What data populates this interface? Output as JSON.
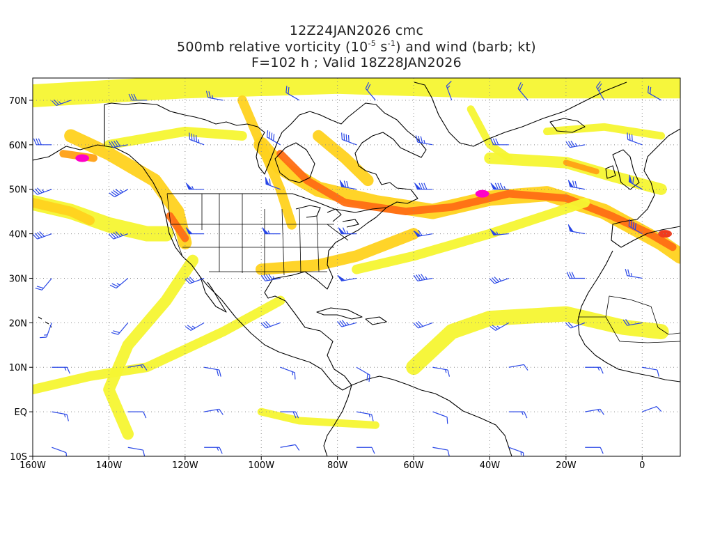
{
  "title": {
    "line1": "12Z24JAN2026 cmc",
    "line2_pre": "500mb relative vorticity (10",
    "line2_exp1": "-5",
    "line2_mid": " s",
    "line2_exp2": "-1",
    "line2_post": ") and wind (barb; kt)",
    "line3": "F=102 h ; Valid 18Z28JAN2026"
  },
  "axes": {
    "lon_labels": [
      "160W",
      "140W",
      "120W",
      "100W",
      "80W",
      "60W",
      "40W",
      "20W",
      "0"
    ],
    "lat_labels": [
      "70N",
      "60N",
      "50N",
      "40N",
      "30N",
      "20N",
      "10N",
      "EQ",
      "10S"
    ],
    "lon_range": [
      -160,
      10
    ],
    "lat_range": [
      -10,
      75
    ],
    "grid": "dotted"
  },
  "colors": {
    "level1": "#f5f532",
    "level2": "#ffd21e",
    "level3": "#ffa014",
    "level4": "#ff6e14",
    "level5": "#f03c1e",
    "level6": "#ff00c8",
    "barb": "#2846e6",
    "coast": "#000000"
  },
  "map_data": {
    "type": "vorticity_wind_map",
    "vorticity_bands": [
      {
        "level": 1,
        "path": [
          [
            -160,
            71
          ],
          [
            -120,
            73
          ],
          [
            -80,
            74
          ],
          [
            -40,
            73
          ],
          [
            -20,
            73
          ],
          [
            10,
            73
          ]
        ],
        "width": 6
      },
      {
        "level": 2,
        "path": [
          [
            -150,
            62
          ],
          [
            -140,
            58
          ],
          [
            -128,
            52
          ],
          [
            -122,
            45
          ],
          [
            -120,
            38
          ]
        ],
        "width": 3.5
      },
      {
        "level": 4,
        "path": [
          [
            -124,
            44
          ],
          [
            -120,
            39
          ]
        ],
        "width": 2
      },
      {
        "level": 1,
        "path": [
          [
            -140,
            60
          ],
          [
            -120,
            63
          ],
          [
            -105,
            62
          ]
        ],
        "width": 2.5
      },
      {
        "level": 1,
        "path": [
          [
            -135,
            -5
          ],
          [
            -140,
            5
          ],
          [
            -135,
            15
          ],
          [
            -125,
            25
          ],
          [
            -118,
            34
          ]
        ],
        "width": 3
      },
      {
        "level": 1,
        "path": [
          [
            -160,
            5
          ],
          [
            -145,
            8
          ],
          [
            -130,
            10
          ],
          [
            -110,
            18
          ],
          [
            -95,
            25
          ]
        ],
        "width": 2.5
      },
      {
        "level": 2,
        "path": [
          [
            -100,
            60
          ],
          [
            -95,
            55
          ],
          [
            -85,
            50
          ],
          [
            -70,
            47
          ],
          [
            -55,
            45
          ],
          [
            -40,
            48
          ],
          [
            -25,
            49
          ],
          [
            -10,
            45
          ],
          [
            5,
            38
          ],
          [
            10,
            35
          ]
        ],
        "width": 4
      },
      {
        "level": 4,
        "path": [
          [
            -95,
            58
          ],
          [
            -88,
            52
          ],
          [
            -78,
            47
          ],
          [
            -62,
            45
          ],
          [
            -50,
            46
          ],
          [
            -35,
            49
          ],
          [
            -20,
            48
          ],
          [
            -8,
            44
          ],
          [
            2,
            40
          ],
          [
            8,
            37
          ]
        ],
        "width": 2
      },
      {
        "level": 2,
        "path": [
          [
            -105,
            70
          ],
          [
            -100,
            60
          ],
          [
            -95,
            50
          ],
          [
            -92,
            42
          ]
        ],
        "width": 2.5
      },
      {
        "level": 2,
        "path": [
          [
            -85,
            62
          ],
          [
            -78,
            57
          ],
          [
            -72,
            52
          ]
        ],
        "width": 3
      },
      {
        "level": 2,
        "path": [
          [
            -100,
            32
          ],
          [
            -85,
            33
          ],
          [
            -75,
            35
          ],
          [
            -60,
            40
          ]
        ],
        "width": 3
      },
      {
        "level": 1,
        "path": [
          [
            -75,
            32
          ],
          [
            -60,
            35
          ],
          [
            -40,
            40
          ],
          [
            -15,
            47
          ]
        ],
        "width": 2.5
      },
      {
        "level": 1,
        "path": [
          [
            -60,
            10
          ],
          [
            -50,
            18
          ],
          [
            -40,
            21
          ],
          [
            -20,
            22
          ],
          [
            -5,
            19
          ],
          [
            5,
            18
          ]
        ],
        "width": 4
      },
      {
        "level": 1,
        "path": [
          [
            -160,
            47
          ],
          [
            -150,
            45
          ],
          [
            -140,
            42
          ],
          [
            -130,
            40
          ],
          [
            -125,
            40
          ]
        ],
        "width": 4
      },
      {
        "level": 2,
        "path": [
          [
            -160,
            47
          ],
          [
            -150,
            45
          ],
          [
            -145,
            43
          ]
        ],
        "width": 2.5
      },
      {
        "level": 1,
        "path": [
          [
            -70,
            -3
          ],
          [
            -90,
            -2
          ],
          [
            -100,
            0
          ]
        ],
        "width": 2
      },
      {
        "level": 1,
        "path": [
          [
            -40,
            57
          ],
          [
            -20,
            56
          ],
          [
            -8,
            53
          ],
          [
            5,
            50
          ]
        ],
        "width": 3
      },
      {
        "level": 3,
        "path": [
          [
            -20,
            56
          ],
          [
            -12,
            54
          ]
        ],
        "width": 1.5
      },
      {
        "level": 3,
        "path": [
          [
            -152,
            58
          ],
          [
            -144,
            57
          ]
        ],
        "width": 2
      },
      {
        "level": 1,
        "path": [
          [
            -25,
            63
          ],
          [
            -10,
            64
          ],
          [
            5,
            62
          ]
        ],
        "width": 2
      },
      {
        "level": 1,
        "path": [
          [
            -45,
            68
          ],
          [
            -40,
            60
          ],
          [
            -35,
            57
          ]
        ],
        "width": 2
      }
    ],
    "vorticity_max": [
      {
        "lat": 57,
        "lon": -147,
        "level": 6
      },
      {
        "lat": 49,
        "lon": -42,
        "level": 6
      },
      {
        "lat": 40,
        "lon": 6,
        "level": 5
      }
    ],
    "wind_barbs": [
      {
        "lat": 70,
        "lon": -150,
        "dir": 250,
        "spd": 25
      },
      {
        "lat": 70,
        "lon": -130,
        "dir": 270,
        "spd": 30
      },
      {
        "lat": 70,
        "lon": -110,
        "dir": 280,
        "spd": 25
      },
      {
        "lat": 70,
        "lon": -90,
        "dir": 300,
        "spd": 20
      },
      {
        "lat": 70,
        "lon": -70,
        "dir": 320,
        "spd": 20
      },
      {
        "lat": 70,
        "lon": -50,
        "dir": 340,
        "spd": 15
      },
      {
        "lat": 70,
        "lon": -30,
        "dir": 320,
        "spd": 20
      },
      {
        "lat": 70,
        "lon": -10,
        "dir": 330,
        "spd": 25
      },
      {
        "lat": 70,
        "lon": 5,
        "dir": 300,
        "spd": 20
      },
      {
        "lat": 60,
        "lon": -155,
        "dir": 270,
        "spd": 30
      },
      {
        "lat": 60,
        "lon": -135,
        "dir": 260,
        "spd": 40
      },
      {
        "lat": 60,
        "lon": -115,
        "dir": 290,
        "spd": 45
      },
      {
        "lat": 60,
        "lon": -95,
        "dir": 300,
        "spd": 40
      },
      {
        "lat": 60,
        "lon": -75,
        "dir": 290,
        "spd": 40
      },
      {
        "lat": 60,
        "lon": -55,
        "dir": 280,
        "spd": 35
      },
      {
        "lat": 60,
        "lon": -35,
        "dir": 270,
        "spd": 30
      },
      {
        "lat": 60,
        "lon": -15,
        "dir": 260,
        "spd": 35
      },
      {
        "lat": 60,
        "lon": 0,
        "dir": 290,
        "spd": 30
      },
      {
        "lat": 50,
        "lon": -155,
        "dir": 250,
        "spd": 35
      },
      {
        "lat": 50,
        "lon": -135,
        "dir": 240,
        "spd": 45
      },
      {
        "lat": 50,
        "lon": -115,
        "dir": 270,
        "spd": 55
      },
      {
        "lat": 50,
        "lon": -95,
        "dir": 290,
        "spd": 60
      },
      {
        "lat": 50,
        "lon": -75,
        "dir": 280,
        "spd": 70
      },
      {
        "lat": 50,
        "lon": -55,
        "dir": 270,
        "spd": 80
      },
      {
        "lat": 50,
        "lon": -35,
        "dir": 270,
        "spd": 85
      },
      {
        "lat": 50,
        "lon": -15,
        "dir": 280,
        "spd": 70
      },
      {
        "lat": 50,
        "lon": 0,
        "dir": 300,
        "spd": 60
      },
      {
        "lat": 40,
        "lon": -155,
        "dir": 250,
        "spd": 40
      },
      {
        "lat": 40,
        "lon": -135,
        "dir": 250,
        "spd": 45
      },
      {
        "lat": 40,
        "lon": -115,
        "dir": 270,
        "spd": 50
      },
      {
        "lat": 40,
        "lon": -95,
        "dir": 270,
        "spd": 55
      },
      {
        "lat": 40,
        "lon": -75,
        "dir": 270,
        "spd": 65
      },
      {
        "lat": 40,
        "lon": -55,
        "dir": 260,
        "spd": 60
      },
      {
        "lat": 40,
        "lon": -35,
        "dir": 265,
        "spd": 55
      },
      {
        "lat": 40,
        "lon": -15,
        "dir": 280,
        "spd": 50
      },
      {
        "lat": 40,
        "lon": 0,
        "dir": 300,
        "spd": 40
      },
      {
        "lat": 30,
        "lon": -155,
        "dir": 220,
        "spd": 20
      },
      {
        "lat": 30,
        "lon": -135,
        "dir": 230,
        "spd": 25
      },
      {
        "lat": 30,
        "lon": -115,
        "dir": 250,
        "spd": 30
      },
      {
        "lat": 30,
        "lon": -95,
        "dir": 260,
        "spd": 45
      },
      {
        "lat": 30,
        "lon": -75,
        "dir": 260,
        "spd": 50
      },
      {
        "lat": 30,
        "lon": -55,
        "dir": 260,
        "spd": 45
      },
      {
        "lat": 30,
        "lon": -35,
        "dir": 250,
        "spd": 35
      },
      {
        "lat": 30,
        "lon": -15,
        "dir": 270,
        "spd": 30
      },
      {
        "lat": 30,
        "lon": 0,
        "dir": 280,
        "spd": 25
      },
      {
        "lat": 20,
        "lon": -155,
        "dir": 200,
        "spd": 15
      },
      {
        "lat": 20,
        "lon": -135,
        "dir": 220,
        "spd": 20
      },
      {
        "lat": 20,
        "lon": -115,
        "dir": 240,
        "spd": 25
      },
      {
        "lat": 20,
        "lon": -95,
        "dir": 250,
        "spd": 30
      },
      {
        "lat": 20,
        "lon": -75,
        "dir": 255,
        "spd": 35
      },
      {
        "lat": 20,
        "lon": -55,
        "dir": 250,
        "spd": 30
      },
      {
        "lat": 20,
        "lon": -35,
        "dir": 240,
        "spd": 25
      },
      {
        "lat": 20,
        "lon": -15,
        "dir": 250,
        "spd": 20
      },
      {
        "lat": 20,
        "lon": 0,
        "dir": 260,
        "spd": 20
      },
      {
        "lat": 10,
        "lon": -155,
        "dir": 90,
        "spd": 15
      },
      {
        "lat": 10,
        "lon": -135,
        "dir": 80,
        "spd": 15
      },
      {
        "lat": 10,
        "lon": -115,
        "dir": 100,
        "spd": 20
      },
      {
        "lat": 10,
        "lon": -95,
        "dir": 110,
        "spd": 15
      },
      {
        "lat": 10,
        "lon": -75,
        "dir": 120,
        "spd": 20
      },
      {
        "lat": 10,
        "lon": -55,
        "dir": 100,
        "spd": 15
      },
      {
        "lat": 10,
        "lon": -35,
        "dir": 80,
        "spd": 10
      },
      {
        "lat": 10,
        "lon": -15,
        "dir": 90,
        "spd": 15
      },
      {
        "lat": 10,
        "lon": 0,
        "dir": 100,
        "spd": 10
      },
      {
        "lat": 0,
        "lon": -155,
        "dir": 100,
        "spd": 15
      },
      {
        "lat": 0,
        "lon": -135,
        "dir": 90,
        "spd": 10
      },
      {
        "lat": 0,
        "lon": -115,
        "dir": 80,
        "spd": 15
      },
      {
        "lat": 0,
        "lon": -95,
        "dir": 90,
        "spd": 20
      },
      {
        "lat": 0,
        "lon": -75,
        "dir": 100,
        "spd": 15
      },
      {
        "lat": 0,
        "lon": -55,
        "dir": 110,
        "spd": 10
      },
      {
        "lat": 0,
        "lon": -35,
        "dir": 90,
        "spd": 15
      },
      {
        "lat": 0,
        "lon": -15,
        "dir": 80,
        "spd": 15
      },
      {
        "lat": 0,
        "lon": 0,
        "dir": 70,
        "spd": 10
      },
      {
        "lat": -8,
        "lon": -155,
        "dir": 110,
        "spd": 10
      },
      {
        "lat": -8,
        "lon": -135,
        "dir": 100,
        "spd": 10
      },
      {
        "lat": -8,
        "lon": -115,
        "dir": 90,
        "spd": 15
      },
      {
        "lat": -8,
        "lon": -95,
        "dir": 80,
        "spd": 10
      },
      {
        "lat": -8,
        "lon": -75,
        "dir": 90,
        "spd": 10
      },
      {
        "lat": -8,
        "lon": -55,
        "dir": 100,
        "spd": 10
      },
      {
        "lat": -8,
        "lon": -35,
        "dir": 110,
        "spd": 15
      },
      {
        "lat": -8,
        "lon": -15,
        "dir": 90,
        "spd": 10
      }
    ]
  }
}
